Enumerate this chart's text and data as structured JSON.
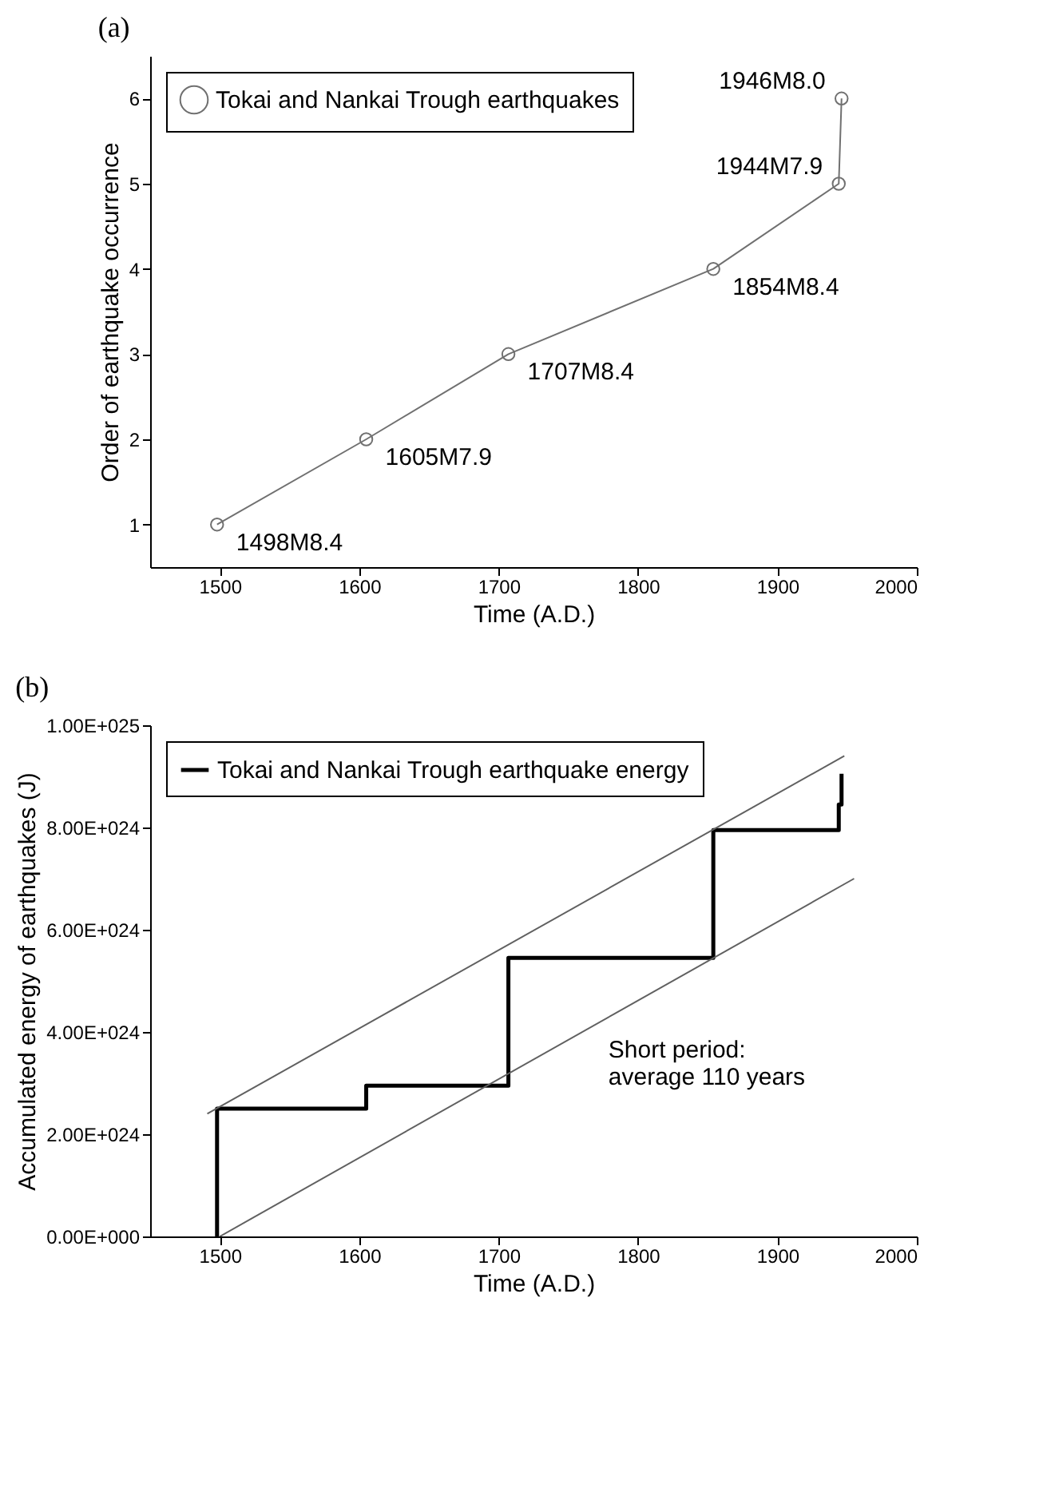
{
  "chart_data": [
    {
      "type": "line",
      "title": "(a)",
      "xlabel": "Time (A.D.)",
      "ylabel": "Order of earthquake occurrence",
      "x": [
        1498,
        1605,
        1707,
        1854,
        1944,
        1946
      ],
      "series": [
        {
          "name": "Tokai and Nankai Trough earthquakes",
          "color": "#707070",
          "values": [
            1,
            2,
            3,
            4,
            5,
            6
          ]
        }
      ],
      "xlim": [
        1450,
        2000
      ],
      "xticks": [
        1500,
        1600,
        1700,
        1800,
        1900,
        2000
      ],
      "ylim": [
        0.5,
        6.5
      ],
      "yticks": [
        1,
        2,
        3,
        4,
        5,
        6
      ],
      "annotations": [
        {
          "text": "1498M8.4",
          "x": 1498,
          "y": 1
        },
        {
          "text": "1605M7.9",
          "x": 1605,
          "y": 2
        },
        {
          "text": "1707M8.4",
          "x": 1707,
          "y": 3
        },
        {
          "text": "1854M8.4",
          "x": 1854,
          "y": 4
        },
        {
          "text": "1944M7.9",
          "x": 1944,
          "y": 5
        },
        {
          "text": "1946M8.0",
          "x": 1946,
          "y": 6
        }
      ],
      "marker": "circle",
      "line_style": "solid",
      "grid": false,
      "legend": "top left"
    },
    {
      "type": "line",
      "title": "(b)",
      "xlabel": "Time (A.D.)",
      "ylabel": "Accumulated energy of earthquakes (J)",
      "series": [
        {
          "name": "Tokai and Nankai Trough earthquake energy",
          "type": "step",
          "color": "#000000",
          "x": [
            1498,
            1498,
            1605,
            1707,
            1854,
            1944,
            1946
          ],
          "values": [
            0,
            2.5e+24,
            2.95e+24,
            5.45e+24,
            7.95e+24,
            8.45e+24,
            9.05e+24
          ]
        },
        {
          "color": "#606060",
          "x": [
            1491,
            1948
          ],
          "values": [
            2.4e+24,
            9.4e+24
          ]
        },
        {
          "color": "#606060",
          "x": [
            1500,
            1955
          ],
          "values": [
            0,
            7e+24
          ]
        }
      ],
      "xlim": [
        1450,
        2000
      ],
      "xticks": [
        1500,
        1600,
        1700,
        1800,
        1900,
        2000
      ],
      "ylim": [
        0,
        1e+25
      ],
      "yticks": [
        {
          "value": 0,
          "label": "0.00E+000"
        },
        {
          "value": 2e+24,
          "label": "2.00E+024"
        },
        {
          "value": 4e+24,
          "label": "4.00E+024"
        },
        {
          "value": 6e+24,
          "label": "6.00E+024"
        },
        {
          "value": 8e+24,
          "label": "8.00E+024"
        },
        {
          "value": 1e+25,
          "label": "1.00E+025"
        }
      ],
      "annotations": [
        {
          "text": "Short period:\naverage 110 years",
          "x": 1765,
          "y": 4e+24
        }
      ],
      "line_style": "solid",
      "grid": false,
      "legend": "top left"
    }
  ]
}
